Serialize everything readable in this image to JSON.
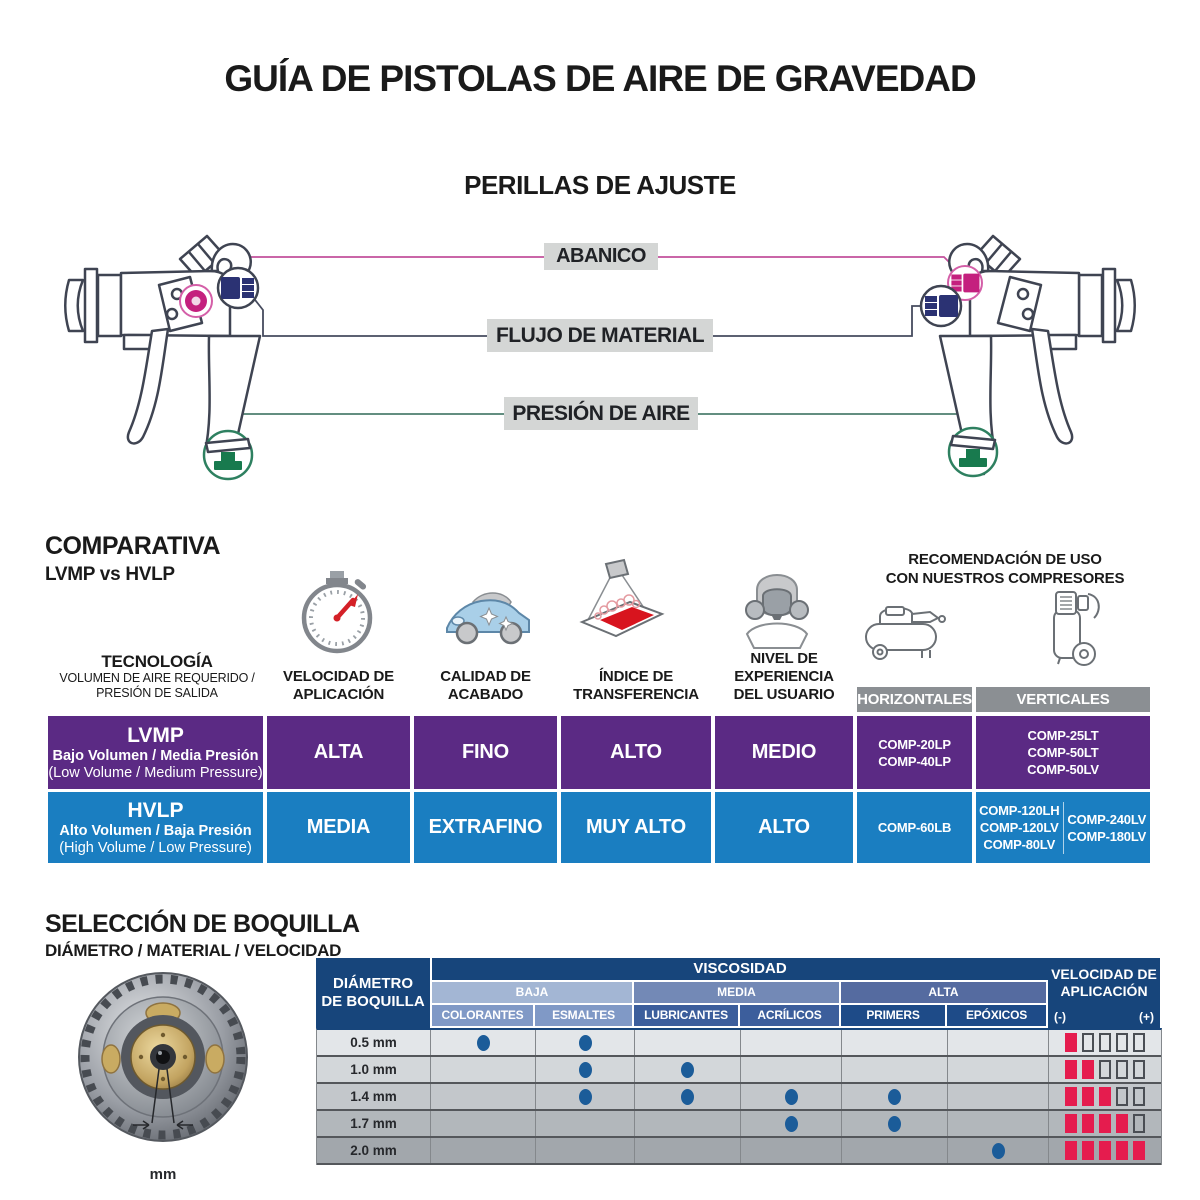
{
  "page": {
    "title": "GUÍA DE PISTOLAS DE AIRE DE GRAVEDAD"
  },
  "knobs": {
    "section_title": "PERILLAS DE AJUSTE",
    "items": [
      {
        "label": "ABANICO",
        "line_color": "#c2519c"
      },
      {
        "label": "FLUJO DE MATERIAL",
        "line_color": "#464b5e"
      },
      {
        "label": "PRESIÓN DE AIRE",
        "line_color": "#4d7f6f"
      }
    ]
  },
  "comparativa": {
    "title": "COMPARATIVA",
    "subtitle": "LVMP vs HVLP",
    "reco_lines": [
      "RECOMENDACIÓN DE USO",
      "CON NUESTROS COMPRESORES"
    ],
    "columns": [
      {
        "lines": [
          "TECNOLOGÍA"
        ],
        "sub_lines": [
          "VOLUMEN DE AIRE REQUERIDO /",
          "PRESIÓN DE SALIDA"
        ]
      },
      {
        "lines": [
          "VELOCIDAD DE",
          "APLICACIÓN"
        ],
        "icon": "stopwatch-icon"
      },
      {
        "lines": [
          "CALIDAD DE",
          "ACABADO"
        ],
        "icon": "car-icon"
      },
      {
        "lines": [
          "ÍNDICE DE",
          "TRANSFERENCIA"
        ],
        "icon": "spray-panel-icon"
      },
      {
        "lines": [
          "NIVEL DE",
          "EXPERIENCIA",
          "DEL USUARIO"
        ],
        "icon": "respirator-icon"
      },
      {
        "label": "HORIZONTALES",
        "icon": "horizontal-compressor-icon"
      },
      {
        "label": "VERTICALES",
        "icon": "vertical-compressor-icon"
      }
    ],
    "rows": [
      {
        "tech": "LVMP",
        "tech_sub": "Bajo Volumen / Media Presión",
        "tech_sub_en": "(Low Volume / Medium Pressure)",
        "velocidad": "ALTA",
        "calidad": "FINO",
        "indice": "ALTO",
        "nivel": "MEDIO",
        "horizontales": [
          "COMP-20LP",
          "COMP-40LP"
        ],
        "verticales": [
          "COMP-25LT",
          "COMP-50LT",
          "COMP-50LV"
        ],
        "row_color": "#5b2a84"
      },
      {
        "tech": "HVLP",
        "tech_sub": "Alto Volumen / Baja Presión",
        "tech_sub_en": "(High Volume / Low Pressure)",
        "velocidad": "MEDIA",
        "calidad": "EXTRAFINO",
        "indice": "MUY ALTO",
        "nivel": "ALTO",
        "horizontales": [
          "COMP-60LB"
        ],
        "verticales_col1": [
          "COMP-120LH",
          "COMP-120LV",
          "COMP-80LV"
        ],
        "verticales_col2": [
          "COMP-240LV",
          "COMP-180LV"
        ],
        "row_color": "#1a7ec1"
      }
    ]
  },
  "boquilla": {
    "title": "SELECCIÓN DE BOQUILLA",
    "subtitle": "DIÁMETRO / MATERIAL / VELOCIDAD",
    "mm_label": "mm",
    "table": {
      "corner_lines": [
        "DIÁMETRO",
        "DE BOQUILLA"
      ],
      "viscosidad": "VISCOSIDAD",
      "speed_header_lines": [
        "VELOCIDAD DE",
        "APLICACIÓN"
      ],
      "speed_minus": "(-)",
      "speed_plus": "(+)",
      "groups": [
        {
          "label": "BAJA",
          "materials": [
            "COLORANTES",
            "ESMALTES"
          ]
        },
        {
          "label": "MEDIA",
          "materials": [
            "LUBRICANTES",
            "ACRÍLICOS"
          ]
        },
        {
          "label": "ALTA",
          "materials": [
            "PRIMERS",
            "EPÓXICOS"
          ]
        }
      ],
      "rows": [
        {
          "diameter": "0.5 mm",
          "dots": [
            "COLORANTES",
            "ESMALTES"
          ],
          "speed": 1
        },
        {
          "diameter": "1.0 mm",
          "dots": [
            "ESMALTES",
            "LUBRICANTES"
          ],
          "speed": 2
        },
        {
          "diameter": "1.4 mm",
          "dots": [
            "ESMALTES",
            "LUBRICANTES",
            "ACRÍLICOS",
            "PRIMERS"
          ],
          "speed": 3
        },
        {
          "diameter": "1.7 mm",
          "dots": [
            "ACRÍLICOS",
            "PRIMERS"
          ],
          "speed": 4
        },
        {
          "diameter": "2.0 mm",
          "dots": [
            "EPÓXICOS"
          ],
          "speed": 5
        }
      ],
      "speed_max": 5
    }
  },
  "colors": {
    "lvmp_purple": "#5b2a84",
    "hvlp_blue": "#1a7ec1",
    "header_navy": "#17457b",
    "dot_blue": "#1b5c99",
    "speed_bar_red": "#e51c4e",
    "abanico_pink": "#c4207e",
    "flujo_navy": "#2b3273",
    "presion_green": "#187a4e",
    "label_gray": "#d4d6d5"
  }
}
